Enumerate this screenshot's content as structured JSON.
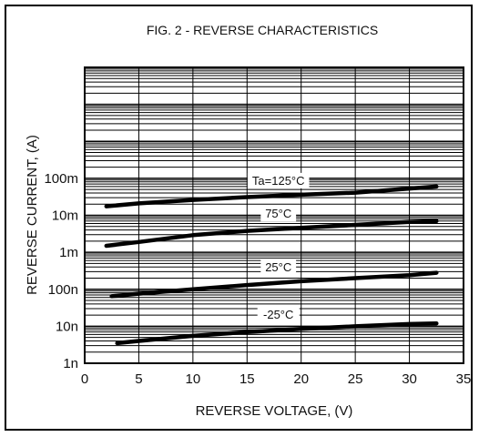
{
  "chart_data": {
    "type": "line",
    "title": "FIG. 2 - REVERSE CHARACTERISTICS",
    "xlabel": "REVERSE VOLTAGE, (V)",
    "ylabel": "REVERSE CURRENT, (A)",
    "xlim": [
      0,
      35
    ],
    "ylim": [
      1e-09,
      0.1
    ],
    "yscale": "log",
    "grid": true,
    "x_ticks": [
      {
        "value": 0,
        "label": "0"
      },
      {
        "value": 5,
        "label": "5"
      },
      {
        "value": 10,
        "label": "10"
      },
      {
        "value": 15,
        "label": "15"
      },
      {
        "value": 20,
        "label": "20"
      },
      {
        "value": 25,
        "label": "25"
      },
      {
        "value": 30,
        "label": "30"
      },
      {
        "value": 35,
        "label": "35"
      }
    ],
    "y_ticks": [
      {
        "value": 1e-09,
        "label": "1n"
      },
      {
        "value": 1e-08,
        "label": "10n"
      },
      {
        "value": 1e-07,
        "label": "100n"
      },
      {
        "value": 1e-06,
        "label": "1m"
      },
      {
        "value": 1e-05,
        "label": "10m"
      },
      {
        "value": 0.0001,
        "label": "100m"
      }
    ],
    "series": [
      {
        "name": "Ta=125°C",
        "x": [
          2,
          5,
          10,
          15,
          20,
          25,
          30,
          32.5
        ],
        "y": [
          1.75e-05,
          2.1e-05,
          2.6e-05,
          3.1e-05,
          3.6e-05,
          4.1e-05,
          5.3e-05,
          6e-05
        ]
      },
      {
        "name": "75°C",
        "x": [
          2,
          5,
          10,
          15,
          20,
          25,
          30,
          32.5
        ],
        "y": [
          1.5e-06,
          1.9e-06,
          2.9e-06,
          3.8e-06,
          4.6e-06,
          5.5e-06,
          6.6e-06,
          7e-06
        ]
      },
      {
        "name": "25°C",
        "x": [
          2.5,
          5,
          10,
          15,
          20,
          25,
          30,
          32.5
        ],
        "y": [
          6.5e-08,
          7.6e-08,
          1e-07,
          1.3e-07,
          1.65e-07,
          2e-07,
          2.4e-07,
          2.8e-07
        ]
      },
      {
        "name": "-25°C",
        "x": [
          3,
          5,
          10,
          15,
          20,
          25,
          30,
          32.5
        ],
        "y": [
          3.5e-09,
          4e-09,
          5.5e-09,
          7e-09,
          8.5e-09,
          1e-08,
          1.15e-08,
          1.2e-08
        ]
      }
    ]
  }
}
